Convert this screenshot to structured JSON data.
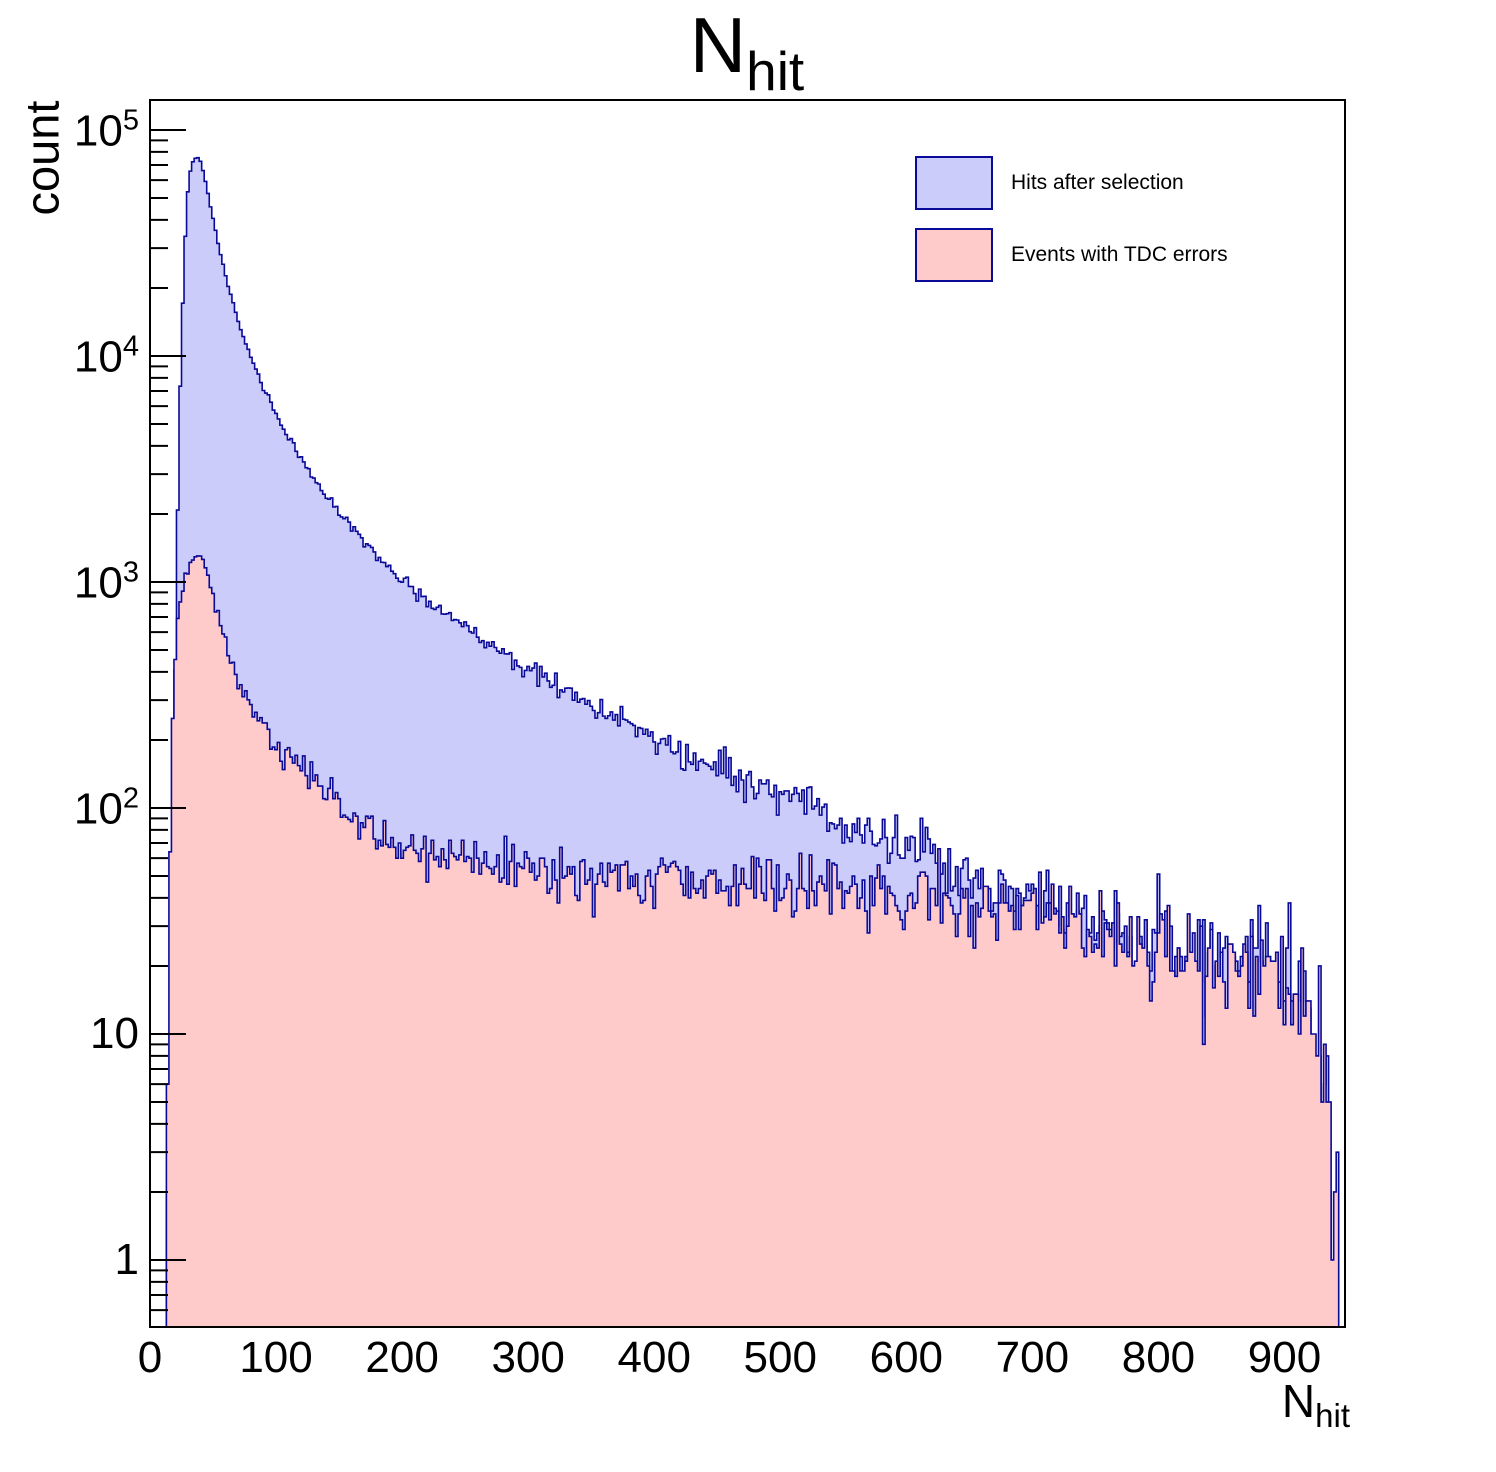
{
  "title": {
    "base": "N",
    "sub": "hit"
  },
  "y_axis": {
    "label": "count",
    "scale": "log",
    "min": 0.5,
    "max": 136000,
    "tick_labels": [
      {
        "mantissa": "10",
        "exponent": "5",
        "value": 100000
      },
      {
        "mantissa": "10",
        "exponent": "4",
        "value": 10000
      },
      {
        "mantissa": "10",
        "exponent": "3",
        "value": 1000
      },
      {
        "mantissa": "10",
        "exponent": "2",
        "value": 100
      },
      {
        "mantissa": "10",
        "exponent": "",
        "value": 10
      },
      {
        "mantissa": "1",
        "exponent": "",
        "value": 1
      }
    ]
  },
  "x_axis": {
    "label_base": "N",
    "label_sub": "hit",
    "min": 0,
    "max": 948,
    "major_ticks": [
      0,
      100,
      200,
      300,
      400,
      500,
      600,
      700,
      800,
      900
    ],
    "minor_tick_step": 20
  },
  "legend": {
    "entries": [
      {
        "label": "Hits after selection",
        "fill": "#ccccfa",
        "border": "#0a0a99"
      },
      {
        "label": "Events with TDC errors",
        "fill": "#ffcaca",
        "border": "#0a0a99"
      }
    ]
  },
  "colors": {
    "histogram_line": "#0a0a99",
    "frame": "#000000",
    "background": "#ffffff"
  },
  "chart_data": {
    "type": "bar",
    "subtype": "overlaid-step-histograms",
    "title": "N_hit",
    "xlabel": "N_hit",
    "ylabel": "count",
    "x_range": [
      0,
      948
    ],
    "y_range": [
      0.5,
      136000
    ],
    "log_y": true,
    "grid": false,
    "legend_position": "top-right",
    "bin_width": 2,
    "series": [
      {
        "name": "Hits after selection",
        "fill": "#ccccfa",
        "line": "#0a0a99",
        "peak": {
          "x": 38,
          "count": 76000
        },
        "anchors": [
          [
            10,
            0
          ],
          [
            13,
            1
          ],
          [
            15,
            2
          ],
          [
            16,
            5
          ],
          [
            17,
            14
          ],
          [
            18,
            45
          ],
          [
            19,
            130
          ],
          [
            20,
            380
          ],
          [
            21,
            950
          ],
          [
            22,
            2100
          ],
          [
            23,
            4000
          ],
          [
            24,
            7200
          ],
          [
            25,
            11500
          ],
          [
            26,
            17500
          ],
          [
            27,
            25000
          ],
          [
            28,
            34000
          ],
          [
            29,
            44000
          ],
          [
            30,
            53000
          ],
          [
            31,
            60000
          ],
          [
            32,
            66000
          ],
          [
            34,
            72000
          ],
          [
            36,
            75500
          ],
          [
            38,
            76000
          ],
          [
            40,
            72500
          ],
          [
            42,
            66000
          ],
          [
            44,
            59000
          ],
          [
            46,
            52500
          ],
          [
            48,
            46000
          ],
          [
            50,
            40500
          ],
          [
            53,
            33500
          ],
          [
            56,
            28000
          ],
          [
            60,
            22500
          ],
          [
            64,
            18600
          ],
          [
            68,
            15600
          ],
          [
            72,
            13200
          ],
          [
            76,
            11400
          ],
          [
            80,
            9900
          ],
          [
            85,
            8400
          ],
          [
            90,
            7200
          ],
          [
            95,
            6300
          ],
          [
            100,
            5500
          ],
          [
            107,
            4600
          ],
          [
            114,
            3950
          ],
          [
            121,
            3450
          ],
          [
            128,
            3000
          ],
          [
            135,
            2650
          ],
          [
            142,
            2350
          ],
          [
            150,
            2050
          ],
          [
            158,
            1800
          ],
          [
            166,
            1590
          ],
          [
            175,
            1400
          ],
          [
            184,
            1250
          ],
          [
            193,
            1120
          ],
          [
            200,
            1030
          ],
          [
            210,
            920
          ],
          [
            220,
            830
          ],
          [
            230,
            755
          ],
          [
            240,
            690
          ],
          [
            250,
            630
          ],
          [
            260,
            580
          ],
          [
            270,
            535
          ],
          [
            280,
            495
          ],
          [
            290,
            458
          ],
          [
            300,
            424
          ],
          [
            312,
            382
          ],
          [
            324,
            346
          ],
          [
            336,
            315
          ],
          [
            348,
            288
          ],
          [
            360,
            264
          ],
          [
            372,
            243
          ],
          [
            384,
            225
          ],
          [
            396,
            209
          ],
          [
            408,
            194
          ],
          [
            420,
            181
          ],
          [
            432,
            169
          ],
          [
            444,
            158
          ],
          [
            456,
            148
          ],
          [
            468,
            138
          ],
          [
            480,
            129
          ],
          [
            492,
            121
          ],
          [
            504,
            113
          ],
          [
            516,
            106
          ],
          [
            528,
            99
          ],
          [
            540,
            92
          ],
          [
            552,
            86
          ],
          [
            564,
            81
          ],
          [
            576,
            76
          ],
          [
            588,
            71
          ],
          [
            600,
            66
          ],
          [
            615,
            61
          ],
          [
            630,
            56
          ],
          [
            645,
            51
          ],
          [
            660,
            47
          ],
          [
            675,
            44
          ],
          [
            690,
            41
          ],
          [
            705,
            38
          ],
          [
            720,
            35
          ],
          [
            735,
            33
          ],
          [
            750,
            31
          ],
          [
            765,
            29
          ],
          [
            780,
            27
          ],
          [
            795,
            25
          ],
          [
            810,
            24
          ],
          [
            825,
            23
          ],
          [
            840,
            22
          ],
          [
            855,
            21
          ],
          [
            870,
            20
          ],
          [
            885,
            19
          ],
          [
            900,
            17
          ],
          [
            908,
            15
          ],
          [
            915,
            13
          ],
          [
            922,
            11
          ],
          [
            928,
            8
          ],
          [
            932,
            5
          ],
          [
            936,
            3
          ],
          [
            939,
            2
          ],
          [
            942,
            1
          ],
          [
            945,
            0
          ]
        ]
      },
      {
        "name": "Events with TDC errors",
        "fill": "#ffcaca",
        "line": "#0a0a99",
        "peak": {
          "x": 38,
          "count": 1305
        },
        "anchors": [
          [
            10,
            0
          ],
          [
            12,
            1
          ],
          [
            13,
            2
          ],
          [
            14,
            6
          ],
          [
            15,
            20
          ],
          [
            16,
            60
          ],
          [
            17,
            135
          ],
          [
            18,
            240
          ],
          [
            19,
            350
          ],
          [
            20,
            460
          ],
          [
            22,
            650
          ],
          [
            24,
            810
          ],
          [
            26,
            940
          ],
          [
            28,
            1050
          ],
          [
            30,
            1140
          ],
          [
            32,
            1210
          ],
          [
            34,
            1265
          ],
          [
            36,
            1295
          ],
          [
            38,
            1305
          ],
          [
            40,
            1290
          ],
          [
            42,
            1245
          ],
          [
            44,
            1170
          ],
          [
            46,
            1070
          ],
          [
            48,
            960
          ],
          [
            50,
            860
          ],
          [
            53,
            730
          ],
          [
            56,
            630
          ],
          [
            60,
            550
          ],
          [
            64,
            470
          ],
          [
            68,
            405
          ],
          [
            72,
            355
          ],
          [
            76,
            315
          ],
          [
            80,
            283
          ],
          [
            85,
            252
          ],
          [
            90,
            228
          ],
          [
            95,
            208
          ],
          [
            100,
            190
          ],
          [
            107,
            170
          ],
          [
            114,
            160
          ],
          [
            121,
            150
          ],
          [
            128,
            138
          ],
          [
            135,
            125
          ],
          [
            142,
            114
          ],
          [
            150,
            104
          ],
          [
            158,
            96
          ],
          [
            166,
            89
          ],
          [
            175,
            82
          ],
          [
            184,
            77
          ],
          [
            193,
            72
          ],
          [
            200,
            69
          ],
          [
            210,
            66
          ],
          [
            220,
            63
          ],
          [
            230,
            61
          ],
          [
            240,
            59
          ],
          [
            250,
            58
          ],
          [
            260,
            57
          ],
          [
            270,
            56
          ],
          [
            280,
            55
          ],
          [
            290,
            54
          ],
          [
            300,
            54
          ],
          [
            312,
            53
          ],
          [
            324,
            53
          ],
          [
            336,
            52
          ],
          [
            348,
            52
          ],
          [
            360,
            51
          ],
          [
            372,
            51
          ],
          [
            384,
            50
          ],
          [
            396,
            50
          ],
          [
            408,
            50
          ],
          [
            420,
            49
          ],
          [
            432,
            49
          ],
          [
            444,
            48
          ],
          [
            456,
            48
          ],
          [
            468,
            47
          ],
          [
            480,
            47
          ],
          [
            492,
            46
          ],
          [
            504,
            46
          ],
          [
            516,
            45
          ],
          [
            528,
            45
          ],
          [
            540,
            44
          ],
          [
            552,
            43
          ],
          [
            564,
            43
          ],
          [
            576,
            42
          ],
          [
            588,
            41
          ],
          [
            600,
            40
          ],
          [
            615,
            39
          ],
          [
            630,
            38
          ],
          [
            645,
            37
          ],
          [
            660,
            36
          ],
          [
            675,
            35
          ],
          [
            690,
            34
          ],
          [
            705,
            33
          ],
          [
            720,
            31
          ],
          [
            735,
            30
          ],
          [
            750,
            29
          ],
          [
            765,
            28
          ],
          [
            780,
            27
          ],
          [
            795,
            25
          ],
          [
            810,
            24
          ],
          [
            825,
            23
          ],
          [
            840,
            22
          ],
          [
            855,
            21
          ],
          [
            870,
            20
          ],
          [
            885,
            19
          ],
          [
            900,
            17
          ],
          [
            908,
            15
          ],
          [
            915,
            13
          ],
          [
            922,
            11
          ],
          [
            928,
            8
          ],
          [
            932,
            5
          ],
          [
            936,
            3
          ],
          [
            939,
            2
          ],
          [
            942,
            1
          ],
          [
            945,
            0
          ]
        ]
      }
    ]
  }
}
